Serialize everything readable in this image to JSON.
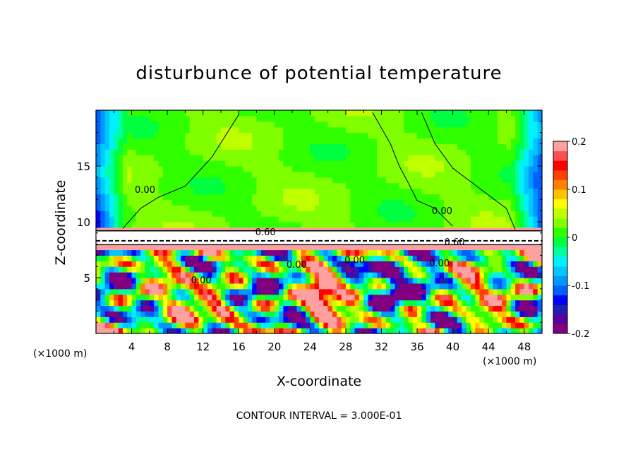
{
  "chart_data": {
    "type": "heatmap",
    "title": "disturbunce of potential temperature",
    "xlabel": "X-coordinate",
    "ylabel": "Z-coordinate",
    "x_unit": "(×1000 m)",
    "x_unit_right": "(×1000 m)",
    "xlim": [
      0,
      50
    ],
    "ylim": [
      0,
      20
    ],
    "x_ticks": [
      "4",
      "8",
      "12",
      "16",
      "20",
      "24",
      "28",
      "32",
      "36",
      "40",
      "44",
      "48"
    ],
    "x_tick_values": [
      4,
      8,
      12,
      16,
      20,
      24,
      28,
      32,
      36,
      40,
      44,
      48
    ],
    "y_ticks": [
      "5",
      "10",
      "15"
    ],
    "y_tick_values": [
      5,
      10,
      15
    ],
    "colorbar": {
      "min": -0.2,
      "max": 0.2,
      "tick_labels": [
        "0.2",
        "0.1",
        "0",
        "-0.1",
        "-0.2"
      ],
      "tick_values": [
        0.2,
        0.1,
        0,
        -0.1,
        -0.2
      ],
      "colors": [
        "#800080",
        "#5a00a0",
        "#2020b0",
        "#0000ff",
        "#0060ff",
        "#0096ff",
        "#00c8ff",
        "#00f0ff",
        "#00ffa0",
        "#00ff40",
        "#30ff00",
        "#80ff00",
        "#c0ff00",
        "#ffff00",
        "#ffc000",
        "#ff8000",
        "#ff4000",
        "#ff0000",
        "#ff5050",
        "#ffa0a0"
      ]
    },
    "contour_labels": [
      {
        "text": "0.00",
        "x": 5.5,
        "z": 12.6
      },
      {
        "text": "0.60",
        "x": 19.0,
        "z": 8.8
      },
      {
        "text": "0.00",
        "x": 38.8,
        "z": 10.7
      },
      {
        "text": "0.60",
        "x": 40.2,
        "z": 7.9
      },
      {
        "text": "0.00",
        "x": 22.5,
        "z": 5.9
      },
      {
        "text": "0.00",
        "x": 29.0,
        "z": 6.3
      },
      {
        "text": "0.00",
        "x": 11.8,
        "z": 4.5
      },
      {
        "text": "0.00",
        "x": 38.5,
        "z": 6.0
      }
    ],
    "contour_interval_text": "CONTOUR INTERVAL = 3.000E-01"
  }
}
